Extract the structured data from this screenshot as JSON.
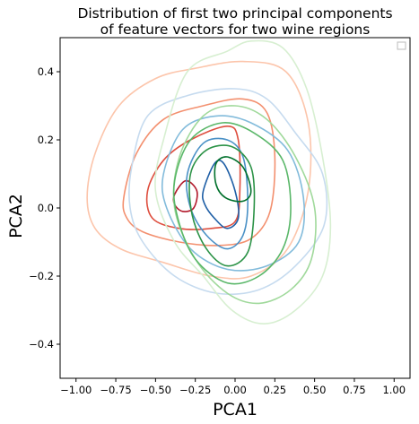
{
  "chart_data": {
    "type": "kde-contour",
    "title_lines": [
      "Distribution of first two principal components",
      "of feature vectors for two wine regions"
    ],
    "xlabel": "PCA1",
    "ylabel": "PCA2",
    "xlim": [
      -1.1,
      1.1
    ],
    "ylim": [
      -0.5,
      0.5
    ],
    "x_ticks": [
      -1.0,
      -0.75,
      -0.5,
      -0.25,
      0.0,
      0.25,
      0.5,
      0.75,
      1.0
    ],
    "x_tick_labels": [
      "−1.00",
      "−0.75",
      "−0.50",
      "−0.25",
      "0.00",
      "0.25",
      "0.50",
      "0.75",
      "1.00"
    ],
    "y_ticks": [
      -0.4,
      -0.2,
      0.0,
      0.2,
      0.4
    ],
    "y_tick_labels": [
      "−0.4",
      "−0.2",
      "0.0",
      "0.2",
      "0.4"
    ],
    "grid": false,
    "legend": {
      "position": "top-right",
      "entries": []
    },
    "series": [
      {
        "colormap": "reds",
        "contours": [
          {
            "color": "#fcc5ab",
            "points": [
              [
                -0.93,
                0.03
              ],
              [
                -0.88,
                0.16
              ],
              [
                -0.73,
                0.3
              ],
              [
                -0.5,
                0.38
              ],
              [
                -0.25,
                0.41
              ],
              [
                0.05,
                0.43
              ],
              [
                0.32,
                0.4
              ],
              [
                0.46,
                0.25
              ],
              [
                0.46,
                0.05
              ],
              [
                0.33,
                -0.12
              ],
              [
                0.1,
                -0.2
              ],
              [
                -0.15,
                -0.2
              ],
              [
                -0.45,
                -0.16
              ],
              [
                -0.72,
                -0.12
              ],
              [
                -0.88,
                -0.06
              ]
            ]
          },
          {
            "color": "#f3906f",
            "points": [
              [
                -0.7,
                0.03
              ],
              [
                -0.62,
                0.16
              ],
              [
                -0.45,
                0.26
              ],
              [
                -0.2,
                0.3
              ],
              [
                0.05,
                0.32
              ],
              [
                0.2,
                0.28
              ],
              [
                0.25,
                0.15
              ],
              [
                0.22,
                -0.01
              ],
              [
                0.1,
                -0.09
              ],
              [
                -0.1,
                -0.11
              ],
              [
                -0.35,
                -0.1
              ],
              [
                -0.58,
                -0.07
              ],
              [
                -0.68,
                -0.03
              ]
            ]
          },
          {
            "color": "#de4e3e",
            "points": [
              [
                -0.55,
                0.05
              ],
              [
                -0.45,
                0.14
              ],
              [
                -0.28,
                0.2
              ],
              [
                -0.05,
                0.24
              ],
              [
                0.02,
                0.2
              ],
              [
                0.03,
                0.05
              ],
              [
                0.0,
                -0.04
              ],
              [
                -0.15,
                -0.06
              ],
              [
                -0.35,
                -0.06
              ],
              [
                -0.52,
                -0.03
              ]
            ]
          },
          {
            "color": "#b2182b",
            "points": [
              [
                -0.38,
                0.04
              ],
              [
                -0.31,
                0.08
              ],
              [
                -0.24,
                0.05
              ],
              [
                -0.26,
                0.0
              ],
              [
                -0.33,
                -0.01
              ],
              [
                -0.38,
                0.01
              ]
            ]
          }
        ]
      },
      {
        "colormap": "blues",
        "contours": [
          {
            "color": "#c6dbef",
            "points": [
              [
                -0.65,
                0.12
              ],
              [
                -0.55,
                0.27
              ],
              [
                -0.3,
                0.33
              ],
              [
                0.0,
                0.35
              ],
              [
                0.2,
                0.32
              ],
              [
                0.38,
                0.22
              ],
              [
                0.55,
                0.1
              ],
              [
                0.56,
                -0.05
              ],
              [
                0.38,
                -0.17
              ],
              [
                0.15,
                -0.24
              ],
              [
                -0.12,
                -0.25
              ],
              [
                -0.38,
                -0.2
              ],
              [
                -0.58,
                -0.1
              ],
              [
                -0.66,
                0.0
              ]
            ]
          },
          {
            "color": "#82bbdb",
            "points": [
              [
                -0.45,
                0.1
              ],
              [
                -0.33,
                0.23
              ],
              [
                -0.12,
                0.27
              ],
              [
                0.1,
                0.25
              ],
              [
                0.33,
                0.17
              ],
              [
                0.43,
                0.03
              ],
              [
                0.4,
                -0.1
              ],
              [
                0.2,
                -0.17
              ],
              [
                -0.05,
                -0.18
              ],
              [
                -0.28,
                -0.12
              ],
              [
                -0.43,
                0.0
              ]
            ]
          },
          {
            "color": "#4a91c6",
            "points": [
              [
                -0.3,
                0.1
              ],
              [
                -0.2,
                0.19
              ],
              [
                -0.05,
                0.2
              ],
              [
                0.05,
                0.15
              ],
              [
                0.08,
                0.02
              ],
              [
                0.05,
                -0.08
              ],
              [
                -0.05,
                -0.12
              ],
              [
                -0.18,
                -0.08
              ],
              [
                -0.28,
                0.0
              ]
            ]
          },
          {
            "color": "#1f5fa6",
            "points": [
              [
                -0.2,
                0.05
              ],
              [
                -0.13,
                0.13
              ],
              [
                -0.07,
                0.13
              ],
              [
                0.0,
                0.05
              ],
              [
                0.02,
                -0.03
              ],
              [
                -0.05,
                -0.06
              ],
              [
                -0.13,
                -0.03
              ],
              [
                -0.19,
                0.01
              ]
            ]
          }
        ]
      },
      {
        "colormap": "greens",
        "contours": [
          {
            "color": "#d7efd1",
            "points": [
              [
                -0.45,
                0.2
              ],
              [
                -0.3,
                0.4
              ],
              [
                -0.05,
                0.46
              ],
              [
                0.1,
                0.49
              ],
              [
                0.3,
                0.47
              ],
              [
                0.45,
                0.35
              ],
              [
                0.55,
                0.15
              ],
              [
                0.6,
                -0.05
              ],
              [
                0.55,
                -0.2
              ],
              [
                0.38,
                -0.3
              ],
              [
                0.18,
                -0.34
              ],
              [
                -0.02,
                -0.3
              ],
              [
                -0.2,
                -0.2
              ],
              [
                -0.38,
                -0.1
              ],
              [
                -0.5,
                0.05
              ]
            ]
          },
          {
            "color": "#a0d99b",
            "points": [
              [
                -0.35,
                0.15
              ],
              [
                -0.2,
                0.27
              ],
              [
                0.0,
                0.3
              ],
              [
                0.2,
                0.26
              ],
              [
                0.38,
                0.15
              ],
              [
                0.5,
                0.0
              ],
              [
                0.48,
                -0.15
              ],
              [
                0.35,
                -0.24
              ],
              [
                0.15,
                -0.28
              ],
              [
                -0.05,
                -0.25
              ],
              [
                -0.25,
                -0.15
              ],
              [
                -0.38,
                0.0
              ]
            ]
          },
          {
            "color": "#5ab769",
            "points": [
              [
                -0.38,
                0.08
              ],
              [
                -0.28,
                0.2
              ],
              [
                -0.08,
                0.25
              ],
              [
                0.12,
                0.22
              ],
              [
                0.3,
                0.14
              ],
              [
                0.35,
                0.0
              ],
              [
                0.3,
                -0.12
              ],
              [
                0.15,
                -0.2
              ],
              [
                -0.05,
                -0.22
              ],
              [
                -0.25,
                -0.15
              ],
              [
                -0.36,
                -0.03
              ]
            ]
          },
          {
            "color": "#2c9347",
            "points": [
              [
                -0.28,
                0.1
              ],
              [
                -0.18,
                0.17
              ],
              [
                -0.02,
                0.18
              ],
              [
                0.1,
                0.12
              ],
              [
                0.12,
                0.0
              ],
              [
                0.08,
                -0.13
              ],
              [
                -0.05,
                -0.17
              ],
              [
                -0.18,
                -0.12
              ],
              [
                -0.27,
                -0.02
              ]
            ]
          },
          {
            "color": "#00702b",
            "points": [
              [
                -0.12,
                0.13
              ],
              [
                -0.05,
                0.15
              ],
              [
                0.05,
                0.12
              ],
              [
                0.1,
                0.05
              ],
              [
                0.05,
                0.02
              ],
              [
                -0.06,
                0.03
              ],
              [
                -0.12,
                0.07
              ]
            ]
          }
        ]
      }
    ]
  }
}
